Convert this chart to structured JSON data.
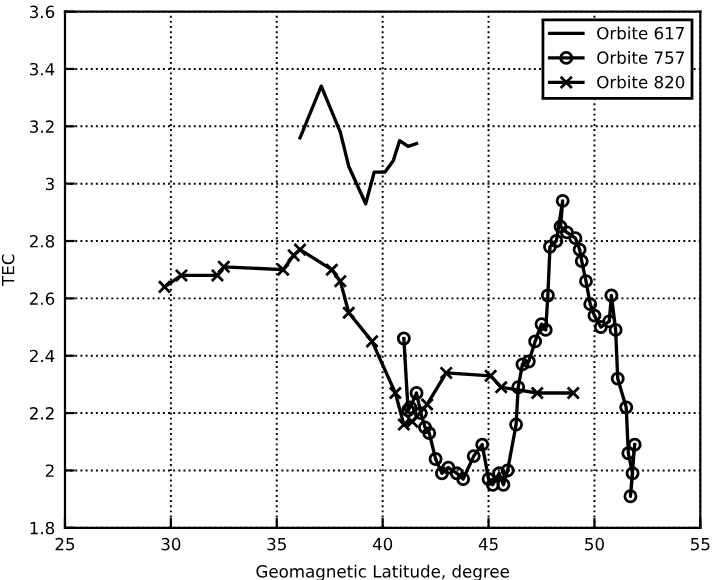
{
  "chart_data": {
    "type": "line",
    "xlabel": "Geomagnetic Latitude, degree",
    "ylabel": "TEC",
    "xlim": [
      25,
      55
    ],
    "xticks": [
      25,
      30,
      35,
      40,
      45,
      50,
      55
    ],
    "ylim": [
      1.8,
      3.6
    ],
    "yticks": [
      1.8,
      2,
      2.2,
      2.4,
      2.6,
      2.8,
      3,
      3.2,
      3.4,
      3.6
    ],
    "grid": true,
    "legend": "top right",
    "series": [
      {
        "name": "Orbite 617",
        "color": "#000000",
        "marker": "none",
        "x": [
          36.1,
          37.1,
          38.0,
          38.4,
          39.2,
          39.6,
          40.1,
          40.5,
          40.8,
          41.2,
          41.6
        ],
        "values": [
          3.16,
          3.34,
          3.18,
          3.06,
          2.93,
          3.04,
          3.04,
          3.08,
          3.15,
          3.13,
          3.14
        ]
      },
      {
        "name": "Orbite 757",
        "color": "#000000",
        "marker": "circle",
        "x": [
          41.0,
          41.2,
          41.3,
          41.6,
          41.8,
          42.0,
          42.2,
          42.5,
          42.8,
          43.1,
          43.5,
          43.8,
          44.3,
          44.7,
          45.0,
          45.2,
          45.5,
          45.7,
          45.9,
          46.3,
          46.4,
          46.6,
          46.9,
          47.2,
          47.5,
          47.7,
          47.8,
          47.9,
          48.2,
          48.5,
          48.4,
          48.7,
          49.1,
          49.3,
          49.4,
          49.6,
          49.8,
          50.0,
          50.3,
          50.7,
          50.8,
          51.0,
          51.1,
          51.5,
          51.6,
          51.8,
          51.7,
          51.9
        ],
        "values": [
          2.46,
          2.21,
          2.22,
          2.27,
          2.2,
          2.15,
          2.13,
          2.04,
          1.99,
          2.01,
          1.99,
          1.97,
          2.05,
          2.09,
          1.97,
          1.95,
          1.99,
          1.95,
          2.0,
          2.16,
          2.29,
          2.37,
          2.38,
          2.45,
          2.51,
          2.49,
          2.61,
          2.78,
          2.8,
          2.94,
          2.85,
          2.83,
          2.81,
          2.77,
          2.73,
          2.66,
          2.58,
          2.54,
          2.5,
          2.52,
          2.61,
          2.49,
          2.32,
          2.22,
          2.06,
          1.99,
          1.91,
          2.09
        ]
      },
      {
        "name": "Orbite 820",
        "color": "#000000",
        "marker": "cross",
        "x": [
          29.7,
          30.5,
          32.2,
          32.5,
          35.3,
          35.8,
          36.1,
          37.6,
          38.0,
          38.4,
          39.5,
          40.6,
          41.0,
          41.4,
          42.1,
          43.0,
          45.1,
          45.6,
          47.3,
          49.0
        ],
        "values": [
          2.64,
          2.68,
          2.68,
          2.71,
          2.7,
          2.75,
          2.77,
          2.7,
          2.66,
          2.55,
          2.45,
          2.27,
          2.16,
          2.17,
          2.23,
          2.34,
          2.33,
          2.29,
          2.27,
          2.27
        ]
      }
    ]
  }
}
